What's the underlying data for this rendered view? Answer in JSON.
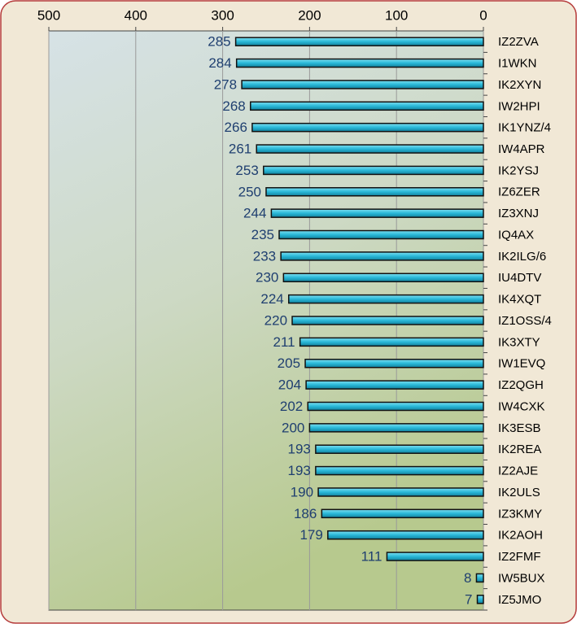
{
  "chart_data": {
    "type": "bar",
    "orientation": "horizontal",
    "categories": [
      "IZ2ZVA",
      "I1WKN",
      "IK2XYN",
      "IW2HPI",
      "IK1YNZ/4",
      "IW4APR",
      "IK2YSJ",
      "IZ6ZER",
      "IZ3XNJ",
      "IQ4AX",
      "IK2ILG/6",
      "IU4DTV",
      "IK4XQT",
      "IZ1OSS/4",
      "IK3XTY",
      "IW1EVQ",
      "IZ2QGH",
      "IW4CXK",
      "IK3ESB",
      "IK2REA",
      "IZ2AJE",
      "IK2ULS",
      "IZ3KMY",
      "IK2AOH",
      "IZ2FMF",
      "IW5BUX",
      "IZ5JMO"
    ],
    "values": [
      285,
      284,
      278,
      268,
      266,
      261,
      253,
      250,
      244,
      235,
      233,
      230,
      224,
      220,
      211,
      205,
      204,
      202,
      200,
      193,
      193,
      190,
      186,
      179,
      111,
      8,
      7
    ],
    "color": "#29b8d8",
    "xlim": [
      500,
      0
    ],
    "xticks": [
      500,
      400,
      300,
      200,
      100,
      0
    ],
    "grid": true
  }
}
